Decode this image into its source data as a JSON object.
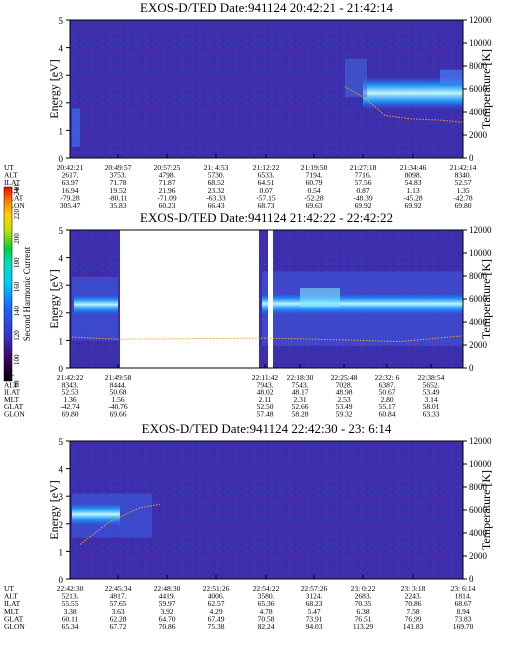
{
  "colorbar": {
    "label": "Second Harmonic Current",
    "ticks": [
      "80",
      "100",
      "120",
      "140",
      "160",
      "180",
      "200",
      "220",
      "240"
    ]
  },
  "row_labels": [
    "UT",
    "ALT",
    "ILAT",
    "MLT",
    "GLAT",
    "GLON"
  ],
  "chart_data": [
    {
      "type": "heatmap",
      "title": "EXOS-D/TED  Date:941124  20:42:21 - 21:42:14",
      "ylabel": "Energy [eV]",
      "y2label": "Temperature [K]",
      "ylim": [
        0,
        5
      ],
      "y2lim": [
        0,
        12000
      ],
      "yticks": [
        "0",
        "1",
        "2",
        "3",
        "4",
        "5"
      ],
      "y2ticks": [
        "0",
        "2000",
        "4000",
        "6000",
        "8000",
        "10000",
        "12000"
      ],
      "ut": [
        "20:42:21",
        "20:49:57",
        "20:57:25",
        "21: 4:53",
        "21:12:22",
        "21:19:50",
        "21:27:18",
        "21:34:46",
        "21:42:14"
      ],
      "rows": {
        "ALT": [
          "2617.",
          "3753.",
          "4798.",
          "5730.",
          "6533.",
          "7194.",
          "7716.",
          "8098.",
          "8340."
        ],
        "ILAT": [
          "63.97",
          "71.78",
          "71.87",
          "68.52",
          "64.51",
          "60.79",
          "57.56",
          "54.83",
          "52.57"
        ],
        "MLT": [
          "16.94",
          "19.52",
          "21.96",
          "23.32",
          "0.07",
          "0.54",
          "0.87",
          "1.13",
          "1.35"
        ],
        "GLAT": [
          "-79.28",
          "-80.11",
          "-71.09",
          "-63.33",
          "-57.15",
          "-52.28",
          "-48.39",
          "-45.28",
          "-42.78"
        ],
        "GLON": [
          "305.47",
          "35.83",
          "60.23",
          "66.43",
          "68.73",
          "69.63",
          "69.92",
          "69.92",
          "69.80"
        ]
      }
    },
    {
      "type": "heatmap",
      "title": "EXOS-D/TED  Date:941124  21:42:22 - 22:42:22",
      "ylabel": "Energy [eV]",
      "y2label": "Temperature [K]",
      "ylim": [
        0,
        5
      ],
      "y2lim": [
        0,
        12000
      ],
      "yticks": [
        "0",
        "1",
        "2",
        "3",
        "4",
        "5"
      ],
      "y2ticks": [
        "0",
        "2000",
        "4000",
        "6000",
        "8000",
        "10000",
        "12000"
      ],
      "ut": [
        "21:42:22",
        "21:49:58",
        "22:11:42",
        "22:18:30",
        "22:25:48",
        "22:32: 6",
        "22:38:54"
      ],
      "rows": {
        "ALT": [
          "8343.",
          "8444.",
          "7943.",
          "7543.",
          "7028.",
          "6387.",
          "5652."
        ],
        "ILAT": [
          "52.53",
          "50.68",
          "48.02",
          "48.17",
          "48.98",
          "50.67",
          "53.49"
        ],
        "MLT": [
          "1.36",
          "1.56",
          "2.11",
          "2.31",
          "2.53",
          "2.80",
          "3.14"
        ],
        "GLAT": [
          "-42.74",
          "-40.76",
          "52.50",
          "52.66",
          "53.49",
          "55.17",
          "58.01"
        ],
        "GLON": [
          "69.80",
          "69.66",
          "57.48",
          "58.28",
          "59.32",
          "60.84",
          "63.33"
        ]
      }
    },
    {
      "type": "heatmap",
      "title": "EXOS-D/TED  Date:941124  22:42:30 - 23: 6:14",
      "ylabel": "Energy [eV]",
      "y2label": "Temperature [K]",
      "ylim": [
        0,
        5
      ],
      "y2lim": [
        0,
        12000
      ],
      "yticks": [
        "0",
        "1",
        "2",
        "3",
        "4",
        "5"
      ],
      "y2ticks": [
        "0",
        "2000",
        "4000",
        "6000",
        "8000",
        "10000",
        "12000"
      ],
      "ut": [
        "22:42:30",
        "22:45:34",
        "22:48:30",
        "22:51:26",
        "22:54:22",
        "22:57:26",
        "23: 0:22",
        "23: 3:18",
        "23: 6:14"
      ],
      "rows": {
        "ALT": [
          "5213.",
          "4817.",
          "4419.",
          "4006.",
          "3580.",
          "3124.",
          "2683.",
          "2243.",
          "1814."
        ],
        "ILAT": [
          "55.55",
          "57.65",
          "59.97",
          "62.57",
          "65.36",
          "68.23",
          "70.35",
          "70.86",
          "68.67"
        ],
        "MLT": [
          "3.38",
          "3.63",
          "3.92",
          "4.29",
          "4.78",
          "5.47",
          "6.38",
          "7.58",
          "8.94"
        ],
        "GLAT": [
          "60.11",
          "62.28",
          "64.70",
          "67.49",
          "70.58",
          "73.91",
          "76.51",
          "76.99",
          "73.83"
        ],
        "GLON": [
          "65.34",
          "67.72",
          "70.86",
          "75.38",
          "82.24",
          "94.03",
          "113.29",
          "141.83",
          "169.70"
        ]
      }
    }
  ]
}
